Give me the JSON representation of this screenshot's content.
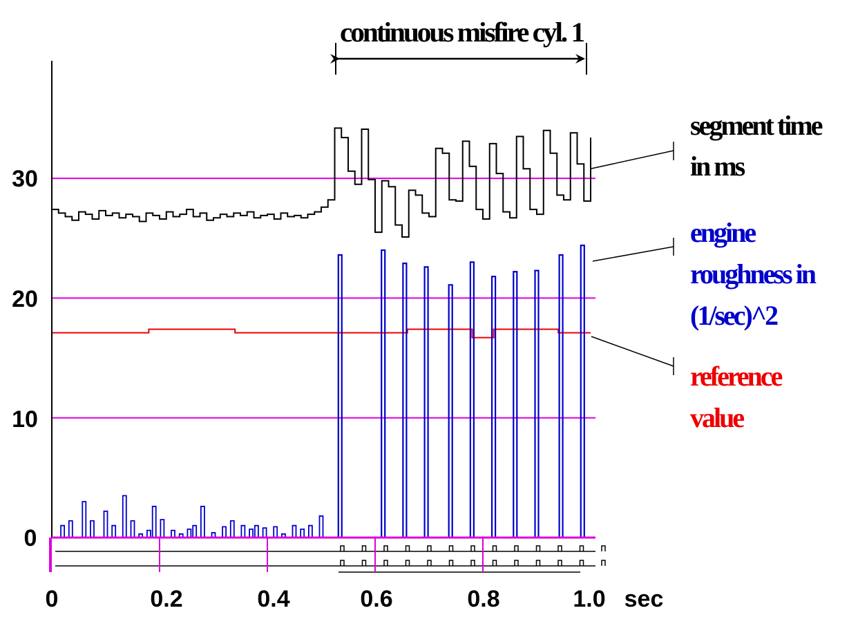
{
  "chart_data": {
    "type": "line",
    "title": "",
    "xlabel": "sec",
    "ylabel": "",
    "xlim": [
      0,
      1.0
    ],
    "ylim": [
      0,
      35
    ],
    "x_ticks": [
      "0",
      "0.2",
      "0.4",
      "0.6",
      "0.8",
      "1.0"
    ],
    "x_tick_values": [
      0,
      0.2,
      0.4,
      0.6,
      0.8,
      1.0
    ],
    "y_ticks": [
      "0",
      "10",
      "20",
      "30"
    ],
    "y_tick_values": [
      0,
      10,
      20,
      30
    ],
    "reference_lines": [
      10,
      20,
      30
    ],
    "annotation_span": {
      "label": "continuous misfire cyl. 1",
      "x_start": 0.53,
      "x_end": 1.0
    },
    "series": [
      {
        "name": "segment time in ms",
        "label_lines": [
          "segment time",
          "in ms"
        ],
        "color": "#000000",
        "style": "step",
        "x": [
          0,
          0.0125,
          0.025,
          0.0375,
          0.05,
          0.0625,
          0.075,
          0.0875,
          0.1,
          0.1125,
          0.125,
          0.1375,
          0.15,
          0.1625,
          0.175,
          0.1875,
          0.2,
          0.2125,
          0.225,
          0.2375,
          0.25,
          0.2625,
          0.275,
          0.2875,
          0.3,
          0.3125,
          0.325,
          0.3375,
          0.35,
          0.3625,
          0.375,
          0.3875,
          0.4,
          0.4125,
          0.425,
          0.4375,
          0.45,
          0.4625,
          0.475,
          0.4875,
          0.5,
          0.5125,
          0.525,
          0.5375,
          0.55,
          0.5625,
          0.575,
          0.5875,
          0.6,
          0.6125,
          0.625,
          0.6375,
          0.65,
          0.6625,
          0.675,
          0.6875,
          0.7,
          0.7125,
          0.725,
          0.7375,
          0.75,
          0.7625,
          0.775,
          0.7875,
          0.8,
          0.8125,
          0.825,
          0.8375,
          0.85,
          0.8625,
          0.875,
          0.8875,
          0.9,
          0.9125,
          0.925,
          0.9375,
          0.95,
          0.9625,
          0.975,
          0.9875,
          1.0
        ],
        "values": [
          27.4,
          27.1,
          26.8,
          26.5,
          27.2,
          27.0,
          26.6,
          27.3,
          26.9,
          27.1,
          26.7,
          27.0,
          26.8,
          26.4,
          27.1,
          26.9,
          26.6,
          27.2,
          26.8,
          27.0,
          27.4,
          26.8,
          27.1,
          26.5,
          26.7,
          27.0,
          26.8,
          27.1,
          26.9,
          27.2,
          26.7,
          26.9,
          27.0,
          26.6,
          27.1,
          26.8,
          26.9,
          26.7,
          27.0,
          27.2,
          27.6,
          28.2,
          34.2,
          33.4,
          30.6,
          29.5,
          34.1,
          29.9,
          25.5,
          29.8,
          29.3,
          26.1,
          25.1,
          29.0,
          28.6,
          27.1,
          26.8,
          32.5,
          32.1,
          28.2,
          28.1,
          33.1,
          31.0,
          27.4,
          26.6,
          32.9,
          30.4,
          27.2,
          26.7,
          33.5,
          30.8,
          27.4,
          27.0,
          34.0,
          32.1,
          28.6,
          28.2,
          33.8,
          31.2,
          28.1,
          33.4
        ]
      },
      {
        "name": "engine roughness in (1/sec)^2",
        "label_lines": [
          "engine",
          "roughness in",
          "(1/sec)^2"
        ],
        "color": "#0000cc",
        "style": "spikes",
        "x": [
          0.02,
          0.035,
          0.06,
          0.075,
          0.1,
          0.115,
          0.135,
          0.15,
          0.165,
          0.18,
          0.19,
          0.205,
          0.225,
          0.24,
          0.255,
          0.265,
          0.28,
          0.3,
          0.32,
          0.335,
          0.355,
          0.37,
          0.38,
          0.395,
          0.415,
          0.43,
          0.45,
          0.465,
          0.48,
          0.5,
          0.535,
          0.615,
          0.655,
          0.695,
          0.74,
          0.78,
          0.82,
          0.86,
          0.9,
          0.945,
          0.985
        ],
        "values": [
          1.0,
          1.4,
          3.0,
          1.4,
          2.2,
          1.0,
          3.5,
          1.4,
          0.3,
          0.6,
          2.6,
          1.5,
          0.6,
          0.3,
          0.7,
          1.0,
          2.6,
          0.4,
          0.9,
          1.4,
          1.0,
          0.7,
          1.0,
          0.8,
          0.9,
          0.3,
          1.0,
          0.7,
          1.0,
          1.8,
          23.6,
          24.0,
          22.9,
          22.6,
          21.1,
          23.0,
          21.8,
          22.2,
          22.3,
          23.6,
          24.4
        ]
      },
      {
        "name": "reference value",
        "label_lines": [
          "reference",
          "value"
        ],
        "color": "#ee0000",
        "style": "step",
        "x": [
          0,
          0.18,
          0.34,
          0.66,
          0.78,
          0.82,
          0.94,
          1.0
        ],
        "values": [
          17.1,
          17.4,
          17.1,
          17.4,
          16.7,
          17.4,
          17.1,
          17.1
        ]
      }
    ],
    "pulse_tracks": 2,
    "legend": "right, with leader lines"
  },
  "colors": {
    "axis": "#000000",
    "reference_lines": "#dd00dd",
    "segment_time": "#000000",
    "roughness": "#0000cc",
    "reference_value": "#ee0000"
  }
}
